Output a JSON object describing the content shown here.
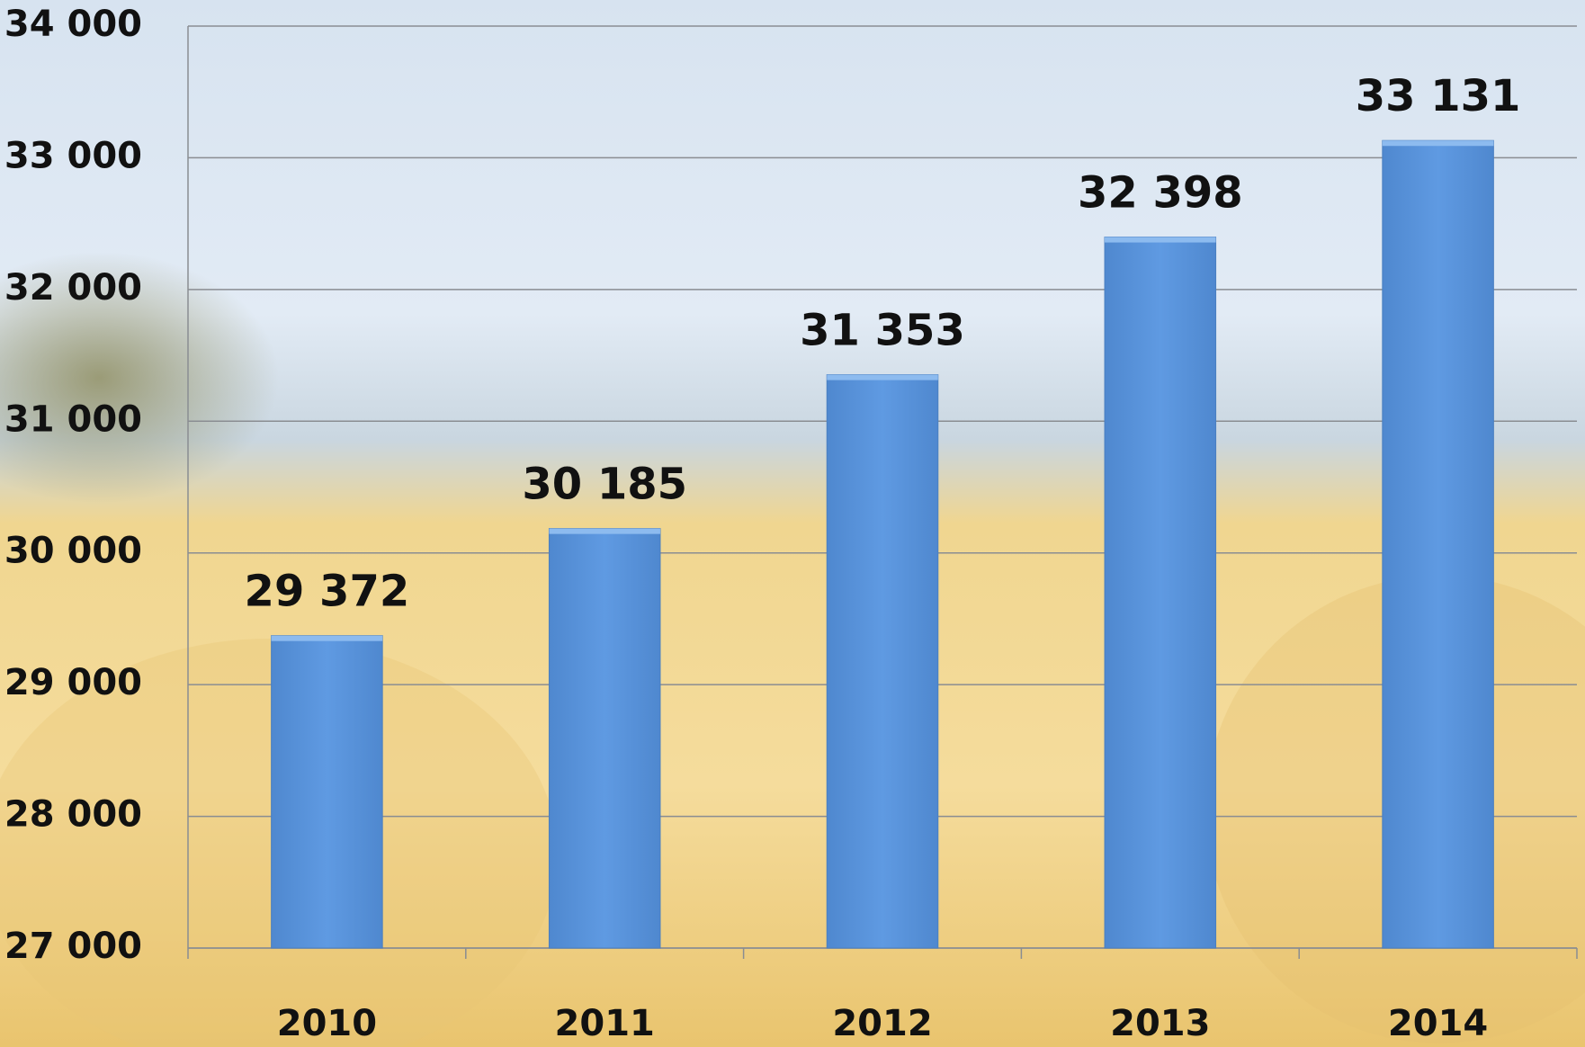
{
  "chart_data": {
    "type": "bar",
    "categories": [
      "2010",
      "2011",
      "2012",
      "2013",
      "2014"
    ],
    "values": [
      29372,
      30185,
      31353,
      32398,
      33131
    ],
    "value_labels": [
      "29 372",
      "30 185",
      "31 353",
      "32 398",
      "33 131"
    ],
    "color": "#5b97de",
    "ylim": [
      27000,
      34000
    ],
    "yticks": [
      {
        "value": 27000,
        "label": "27 000"
      },
      {
        "value": 28000,
        "label": "28 000"
      },
      {
        "value": 29000,
        "label": "29 000"
      },
      {
        "value": 30000,
        "label": "30 000"
      },
      {
        "value": 31000,
        "label": "31 000"
      },
      {
        "value": 32000,
        "label": "32 000"
      },
      {
        "value": 33000,
        "label": "33 000"
      },
      {
        "value": 34000,
        "label": "34 000"
      }
    ],
    "grid": true
  }
}
